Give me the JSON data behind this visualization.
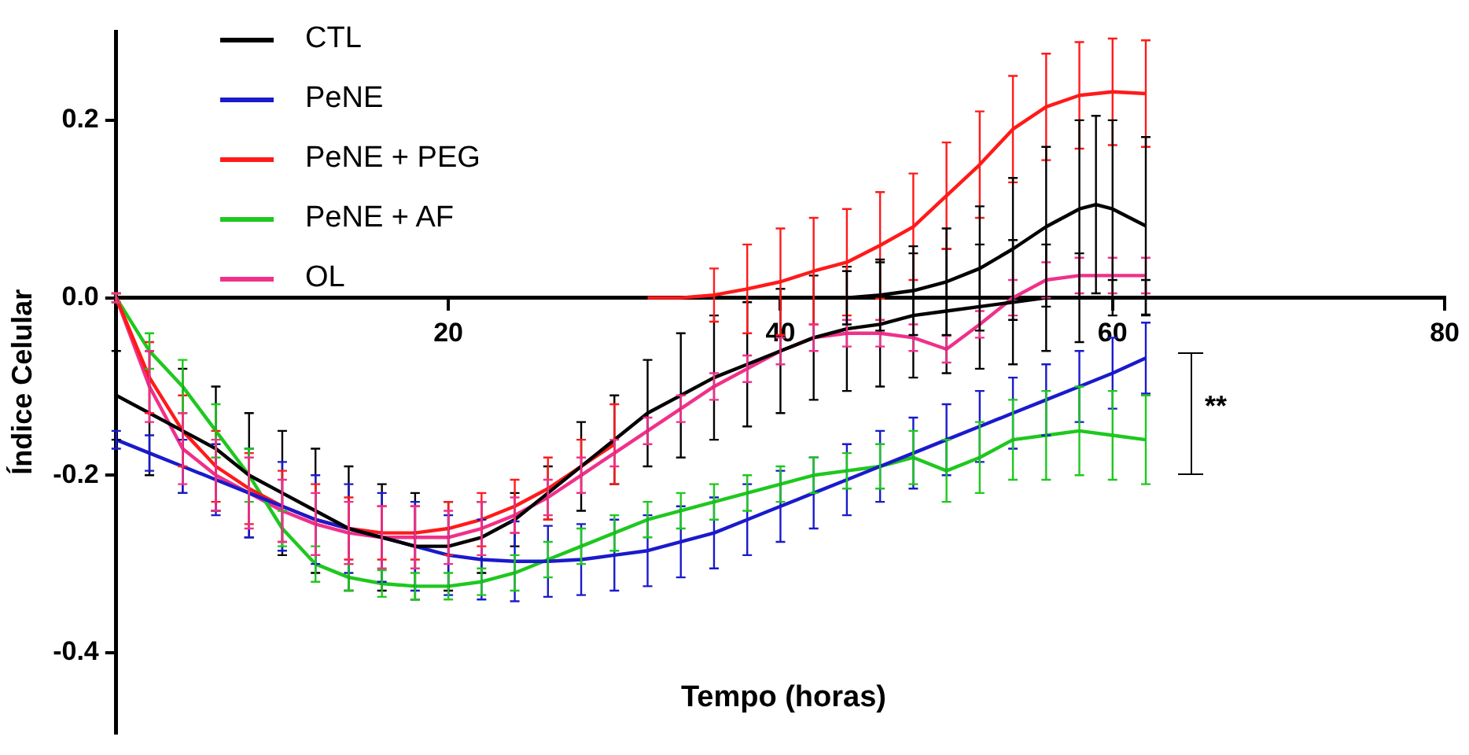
{
  "chart_data": {
    "type": "line",
    "xlabel": "Tempo (horas)",
    "ylabel": "Índice Celular",
    "x": [
      0,
      2,
      4,
      6,
      8,
      10,
      12,
      14,
      16,
      18,
      20,
      22,
      24,
      26,
      28,
      30,
      32,
      34,
      36,
      38,
      40,
      42,
      44,
      46,
      48,
      50,
      52,
      54,
      56,
      58,
      60,
      62
    ],
    "series": [
      {
        "name": "CTL",
        "color": "#000000",
        "values": [
          -0.11,
          -0.13,
          -0.15,
          -0.17,
          -0.2,
          -0.22,
          -0.24,
          -0.26,
          -0.27,
          -0.28,
          -0.28,
          -0.27,
          -0.25,
          -0.22,
          -0.19,
          -0.16,
          -0.13,
          -0.11,
          -0.09,
          -0.075,
          -0.06,
          -0.045,
          -0.035,
          -0.03,
          -0.02,
          -0.015,
          -0.01,
          -0.005,
          0,
          0,
          0,
          0
        ],
        "errors": [
          0.05,
          0.07,
          0.07,
          0.07,
          0.07,
          0.07,
          0.07,
          0.07,
          0.06,
          0.06,
          0.05,
          0.04,
          0.03,
          0.03,
          0.05,
          0.05,
          0.06,
          0.07,
          0.07,
          0.07,
          0.07,
          0.07,
          0.07,
          0.07,
          0.07,
          0.07,
          0.07,
          0.07,
          0.06,
          0.05,
          0.02,
          0.02
        ]
      },
      {
        "name": "PeNE",
        "color": "#1a1acc",
        "values": [
          -0.16,
          -0.175,
          -0.19,
          -0.205,
          -0.22,
          -0.235,
          -0.25,
          -0.26,
          -0.27,
          -0.28,
          -0.29,
          -0.295,
          -0.297,
          -0.297,
          -0.295,
          -0.29,
          -0.285,
          -0.275,
          -0.265,
          -0.25,
          -0.235,
          -0.22,
          -0.205,
          -0.19,
          -0.175,
          -0.16,
          -0.145,
          -0.13,
          -0.115,
          -0.1,
          -0.085,
          -0.068
        ],
        "errors": [
          0.01,
          0.02,
          0.03,
          0.04,
          0.05,
          0.05,
          0.05,
          0.05,
          0.05,
          0.05,
          0.045,
          0.045,
          0.045,
          0.04,
          0.04,
          0.04,
          0.04,
          0.04,
          0.04,
          0.04,
          0.04,
          0.04,
          0.04,
          0.04,
          0.04,
          0.04,
          0.04,
          0.04,
          0.04,
          0.04,
          0.04,
          0.04
        ]
      },
      {
        "name": "PeNE + PEG",
        "color": "#ff1a1a",
        "x": [
          0,
          2,
          4,
          6,
          8,
          10,
          12,
          14,
          16,
          18,
          20,
          22,
          24,
          26,
          28,
          30,
          31,
          32,
          34,
          36,
          38,
          40,
          42,
          44,
          46,
          48,
          50,
          52,
          54,
          56,
          58,
          60,
          62
        ],
        "values": [
          0,
          -0.09,
          -0.15,
          -0.19,
          -0.215,
          -0.235,
          -0.25,
          -0.26,
          -0.265,
          -0.265,
          -0.26,
          -0.25,
          -0.235,
          -0.215,
          -0.19,
          -0.165,
          null,
          0,
          0,
          0.003,
          0.01,
          0.018,
          0.03,
          0.04,
          0.059,
          0.08,
          0.115,
          0.15,
          0.19,
          0.215,
          0.228,
          0.232,
          0.23
        ],
        "errors": [
          0.005,
          0.04,
          0.04,
          0.04,
          0.04,
          0.04,
          0.04,
          0.035,
          0.03,
          0.03,
          0.03,
          0.03,
          0.03,
          0.035,
          0.03,
          0.045,
          null,
          null,
          null,
          0.03,
          0.05,
          0.06,
          0.06,
          0.06,
          0.06,
          0.06,
          0.06,
          0.06,
          0.06,
          0.06,
          0.06,
          0.06,
          0.06
        ]
      },
      {
        "name": "PeNE + AF",
        "color": "#1ec81e",
        "values": [
          0,
          -0.06,
          -0.1,
          -0.15,
          -0.2,
          -0.26,
          -0.3,
          -0.315,
          -0.322,
          -0.325,
          -0.325,
          -0.32,
          -0.31,
          -0.295,
          -0.28,
          -0.265,
          -0.25,
          -0.24,
          -0.23,
          -0.22,
          -0.21,
          -0.2,
          -0.195,
          -0.19,
          -0.18,
          -0.195,
          -0.18,
          -0.16,
          -0.155,
          -0.15,
          -0.155,
          -0.16
        ],
        "errors": [
          0.005,
          0.02,
          0.03,
          0.03,
          0.03,
          0.02,
          0.02,
          0.015,
          0.015,
          0.015,
          0.015,
          0.015,
          0.02,
          0.02,
          0.02,
          0.02,
          0.02,
          0.02,
          0.02,
          0.02,
          0.02,
          0.02,
          0.02,
          0.025,
          0.03,
          0.035,
          0.04,
          0.045,
          0.05,
          0.05,
          0.05,
          0.05
        ]
      },
      {
        "name": "OL",
        "color": "#f0308a",
        "values": [
          0,
          -0.1,
          -0.17,
          -0.2,
          -0.22,
          -0.24,
          -0.255,
          -0.265,
          -0.27,
          -0.27,
          -0.27,
          -0.26,
          -0.245,
          -0.225,
          -0.2,
          -0.175,
          -0.15,
          -0.125,
          -0.1,
          -0.08,
          -0.06,
          -0.045,
          -0.04,
          -0.04,
          -0.045,
          -0.058,
          -0.03,
          0,
          0.02,
          0.025,
          0.025,
          0.025
        ],
        "errors": [
          0.005,
          0.04,
          0.04,
          0.04,
          0.04,
          0.035,
          0.035,
          0.035,
          0.035,
          0.035,
          0.03,
          0.03,
          0.02,
          0.02,
          0.02,
          0.015,
          0.015,
          0.015,
          0.015,
          0.015,
          0.015,
          0.015,
          0.015,
          0.015,
          0.015,
          0.015,
          0.015,
          0.02,
          0.02,
          0.02,
          0.02,
          0.02
        ]
      },
      {
        "color": "#000000",
        "x": [
          44,
          46,
          48,
          50,
          52,
          54,
          56,
          58,
          59,
          60,
          62
        ],
        "values": [
          0,
          0.003,
          0.008,
          0.018,
          0.033,
          0.055,
          0.08,
          0.1,
          0.105,
          0.1,
          0.081
        ],
        "errors": [
          0.03,
          0.04,
          0.05,
          0.06,
          0.07,
          0.08,
          0.09,
          0.1,
          0.1,
          0.1,
          0.1
        ]
      }
    ],
    "xlim": [
      0,
      80
    ],
    "xticks": [
      20,
      40,
      60,
      80
    ],
    "ylim": [
      -0.49,
      0.3
    ],
    "yticks": [
      {
        "value": 0.2,
        "label": "0.2"
      },
      {
        "value": 0,
        "label": "0.0"
      },
      {
        "value": -0.2,
        "label": "-0.2"
      },
      {
        "value": -0.4,
        "label": "-0.4"
      }
    ],
    "annotations": [
      "**"
    ],
    "legend": "top left",
    "marker": "none",
    "line_style": "solid"
  }
}
